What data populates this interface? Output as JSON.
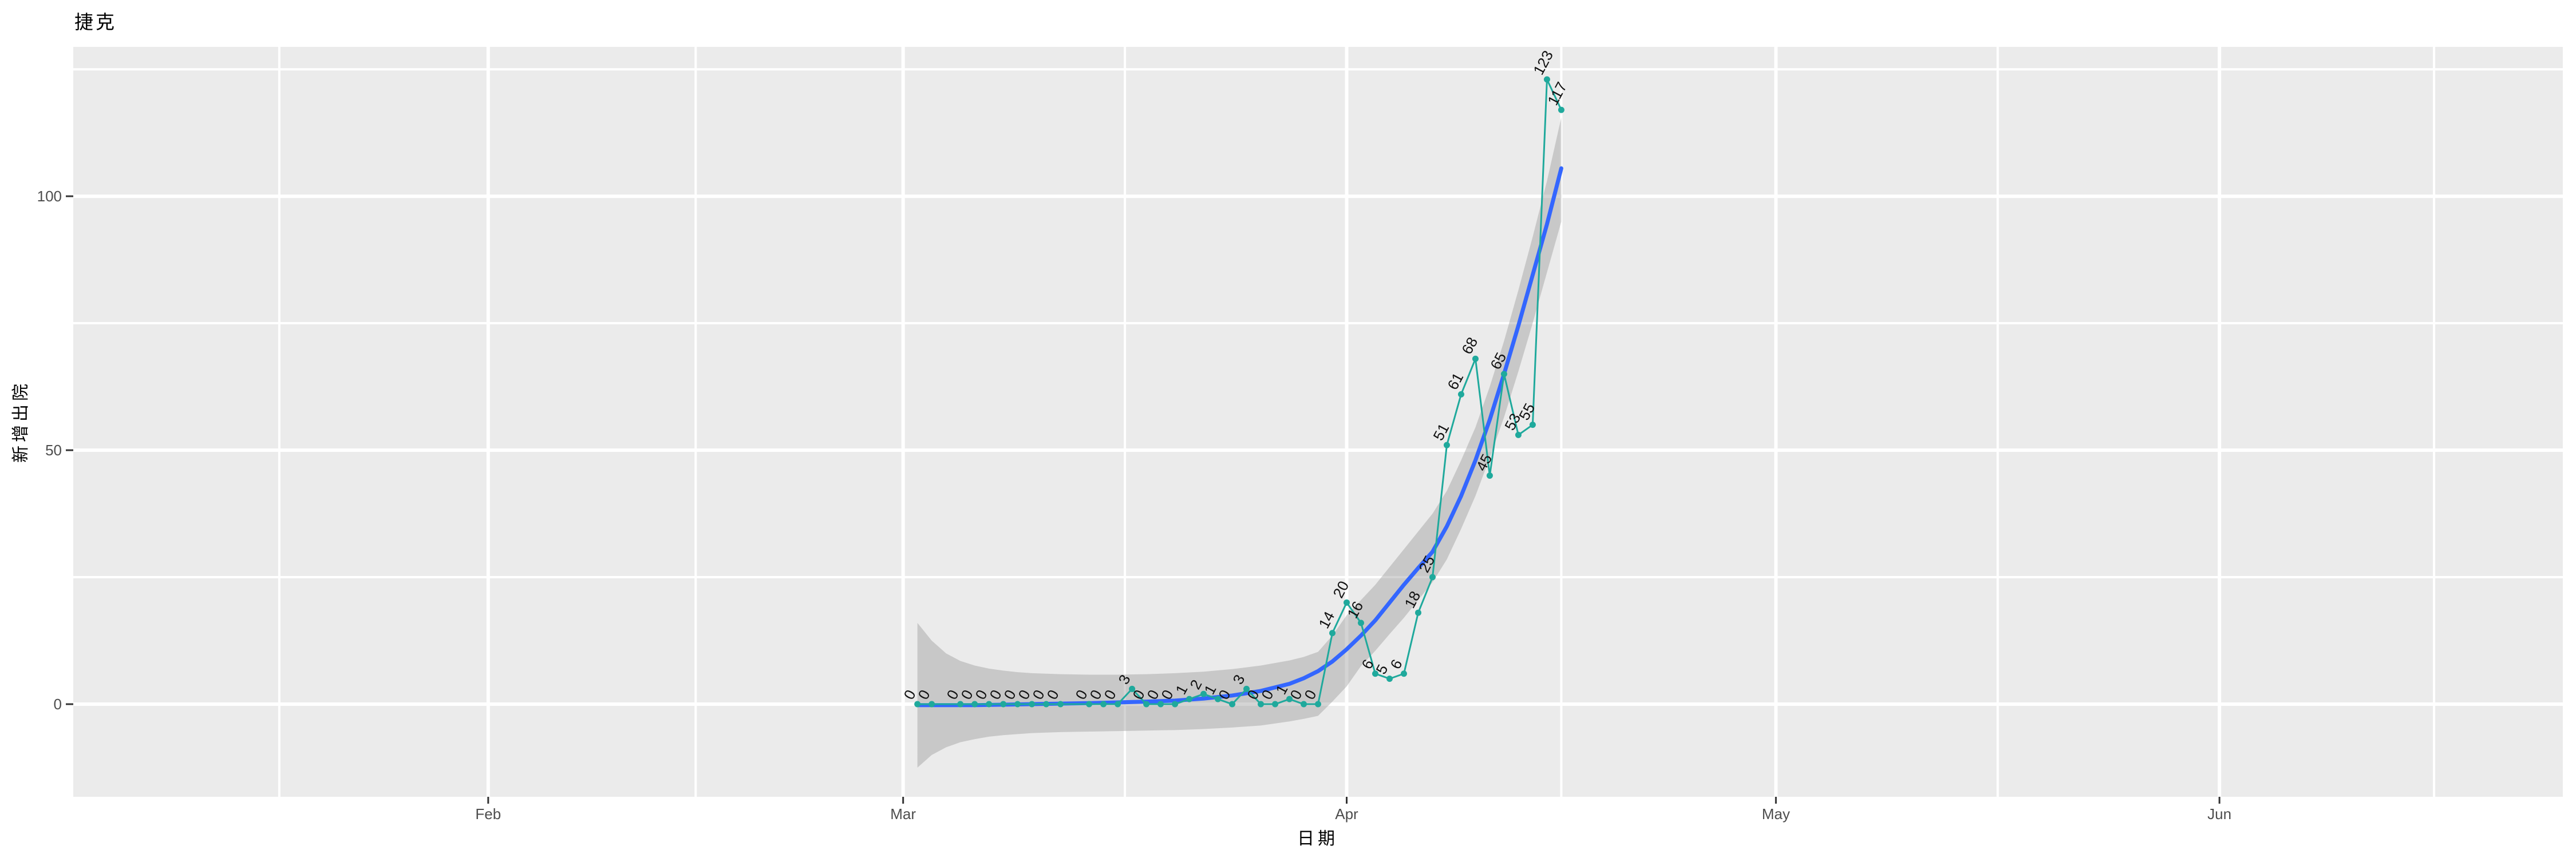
{
  "page": {
    "title": "捷克"
  },
  "chart_data": {
    "type": "scatter+line with loess smooth and confidence ribbon",
    "title": "捷克",
    "xlabel": "日期",
    "ylabel": "新增出院",
    "legend": "none",
    "grid": "on (white major and minor gridlines on grey panel)",
    "x_ticks": [
      {
        "label": "Feb",
        "date": "2020-02-01"
      },
      {
        "label": "Mar",
        "date": "2020-03-01"
      },
      {
        "label": "Apr",
        "date": "2020-04-01"
      },
      {
        "label": "May",
        "date": "2020-05-01"
      },
      {
        "label": "Jun",
        "date": "2020-06-01"
      }
    ],
    "y_ticks": [
      {
        "label": "0",
        "value": 0
      },
      {
        "label": "50",
        "value": 50
      },
      {
        "label": "100",
        "value": 100
      }
    ],
    "y_minor": [
      25,
      75,
      125
    ],
    "x_minor_doy": [
      17.4,
      46.5,
      76.5,
      107,
      137.5,
      168
    ],
    "x_domain_doy": [
      3.0,
      177.0
    ],
    "y_domain": [
      -18.24,
      129.4
    ],
    "points": [
      [
        "2020-03-02",
        0
      ],
      [
        "2020-03-03",
        0
      ],
      [
        "2020-03-05",
        0
      ],
      [
        "2020-03-06",
        0
      ],
      [
        "2020-03-07",
        0
      ],
      [
        "2020-03-08",
        0
      ],
      [
        "2020-03-09",
        0
      ],
      [
        "2020-03-10",
        0
      ],
      [
        "2020-03-11",
        0
      ],
      [
        "2020-03-12",
        0
      ],
      [
        "2020-03-14",
        0
      ],
      [
        "2020-03-15",
        0
      ],
      [
        "2020-03-16",
        0
      ],
      [
        "2020-03-17",
        3
      ],
      [
        "2020-03-18",
        0
      ],
      [
        "2020-03-19",
        0
      ],
      [
        "2020-03-20",
        0
      ],
      [
        "2020-03-21",
        1
      ],
      [
        "2020-03-22",
        2
      ],
      [
        "2020-03-23",
        1
      ],
      [
        "2020-03-24",
        0
      ],
      [
        "2020-03-25",
        3
      ],
      [
        "2020-03-26",
        0
      ],
      [
        "2020-03-27",
        0
      ],
      [
        "2020-03-28",
        1
      ],
      [
        "2020-03-29",
        0
      ],
      [
        "2020-03-30",
        0
      ],
      [
        "2020-03-31",
        14
      ],
      [
        "2020-04-01",
        20
      ],
      [
        "2020-04-02",
        16
      ],
      [
        "2020-04-03",
        6
      ],
      [
        "2020-04-04",
        5
      ],
      [
        "2020-04-05",
        6
      ],
      [
        "2020-04-06",
        18
      ],
      [
        "2020-04-07",
        25
      ],
      [
        "2020-04-08",
        51
      ],
      [
        "2020-04-09",
        61
      ],
      [
        "2020-04-10",
        68
      ],
      [
        "2020-04-11",
        45
      ],
      [
        "2020-04-12",
        65
      ],
      [
        "2020-04-13",
        53
      ],
      [
        "2020-04-14",
        55
      ],
      [
        "2020-04-15",
        123
      ],
      [
        "2020-04-16",
        117
      ]
    ],
    "smooth": [
      [
        "2020-03-02",
        -0.2
      ],
      [
        "2020-03-06",
        -0.2
      ],
      [
        "2020-03-10",
        0.0
      ],
      [
        "2020-03-14",
        0.2
      ],
      [
        "2020-03-18",
        0.5
      ],
      [
        "2020-03-20",
        0.7
      ],
      [
        "2020-03-22",
        1.1
      ],
      [
        "2020-03-24",
        1.7
      ],
      [
        "2020-03-26",
        2.6
      ],
      [
        "2020-03-28",
        4.0
      ],
      [
        "2020-03-29",
        5.1
      ],
      [
        "2020-03-30",
        6.5
      ],
      [
        "2020-03-31",
        8.4
      ],
      [
        "2020-04-01",
        10.8
      ],
      [
        "2020-04-02",
        13.5
      ],
      [
        "2020-04-03",
        16.5
      ],
      [
        "2020-04-04",
        20.0
      ],
      [
        "2020-04-05",
        23.5
      ],
      [
        "2020-04-06",
        26.8
      ],
      [
        "2020-04-07",
        30.0
      ],
      [
        "2020-04-08",
        35.0
      ],
      [
        "2020-04-09",
        41.0
      ],
      [
        "2020-04-10",
        48.0
      ],
      [
        "2020-04-11",
        56.0
      ],
      [
        "2020-04-12",
        65.0
      ],
      [
        "2020-04-13",
        74.5
      ],
      [
        "2020-04-14",
        84.5
      ],
      [
        "2020-04-15",
        94.5
      ],
      [
        "2020-04-16",
        105.5
      ]
    ],
    "ribbon": [
      [
        "2020-03-02",
        -12.5,
        16.0
      ],
      [
        "2020-03-03",
        -10.0,
        12.5
      ],
      [
        "2020-03-04",
        -8.5,
        10.0
      ],
      [
        "2020-03-05",
        -7.5,
        8.5
      ],
      [
        "2020-03-06",
        -6.9,
        7.6
      ],
      [
        "2020-03-07",
        -6.4,
        7.0
      ],
      [
        "2020-03-08",
        -6.1,
        6.6
      ],
      [
        "2020-03-09",
        -5.9,
        6.3
      ],
      [
        "2020-03-10",
        -5.7,
        6.1
      ],
      [
        "2020-03-12",
        -5.5,
        5.9
      ],
      [
        "2020-03-14",
        -5.4,
        5.8
      ],
      [
        "2020-03-16",
        -5.3,
        5.8
      ],
      [
        "2020-03-18",
        -5.2,
        5.9
      ],
      [
        "2020-03-20",
        -5.1,
        6.1
      ],
      [
        "2020-03-22",
        -4.9,
        6.4
      ],
      [
        "2020-03-24",
        -4.6,
        6.9
      ],
      [
        "2020-03-26",
        -4.2,
        7.6
      ],
      [
        "2020-03-28",
        -3.4,
        8.6
      ],
      [
        "2020-03-29",
        -2.9,
        9.3
      ],
      [
        "2020-03-30",
        -2.3,
        10.3
      ],
      [
        "2020-03-31",
        0.5,
        13.5
      ],
      [
        "2020-04-01",
        3.5,
        17.5
      ],
      [
        "2020-04-02",
        7.5,
        20.5
      ],
      [
        "2020-04-03",
        10.5,
        23.5
      ],
      [
        "2020-04-04",
        13.8,
        27.0
      ],
      [
        "2020-04-05",
        17.0,
        30.5
      ],
      [
        "2020-04-06",
        20.5,
        34.0
      ],
      [
        "2020-04-07",
        24.0,
        37.5
      ],
      [
        "2020-04-08",
        28.5,
        42.0
      ],
      [
        "2020-04-09",
        34.5,
        48.0
      ],
      [
        "2020-04-10",
        41.0,
        54.5
      ],
      [
        "2020-04-11",
        48.5,
        62.5
      ],
      [
        "2020-04-12",
        56.5,
        71.5
      ],
      [
        "2020-04-13",
        65.5,
        81.5
      ],
      [
        "2020-04-14",
        75.0,
        92.0
      ],
      [
        "2020-04-15",
        85.0,
        103.0
      ],
      [
        "2020-04-16",
        95.0,
        115.5
      ]
    ],
    "colors": {
      "panel_bg": "#EBEBEB",
      "gridline": "#FFFFFF",
      "smooth_line": "#3366FF",
      "ribbon_fill": "rgba(153,153,153,0.42)",
      "series": "#1FA99C",
      "point_label": "#111111",
      "tick_text": "#4D4D4D",
      "tick_mark": "#333333",
      "title_text": "#000000"
    }
  }
}
